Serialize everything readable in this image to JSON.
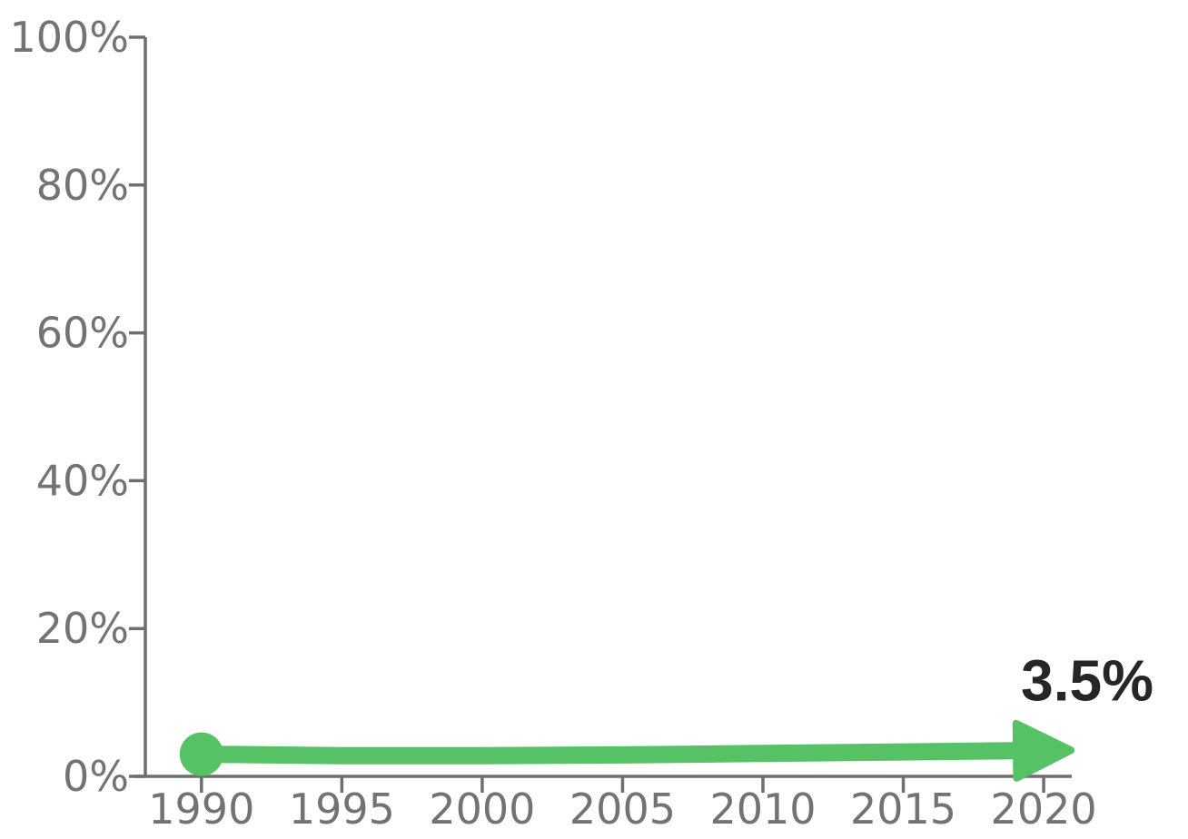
{
  "chart_data": {
    "type": "line",
    "title": "",
    "xlabel": "",
    "ylabel": "",
    "x": [
      1990,
      1995,
      2000,
      2005,
      2010,
      2015,
      2020
    ],
    "series": [
      {
        "values": [
          3.0,
          2.8,
          2.8,
          2.9,
          3.1,
          3.3,
          3.5
        ],
        "color": "#57c265"
      }
    ],
    "xlim": [
      1988,
      2021
    ],
    "ylim": [
      0,
      100
    ],
    "x_ticks": [
      1990,
      1995,
      2000,
      2005,
      2010,
      2015,
      2020
    ],
    "y_ticks": [
      0,
      20,
      40,
      60,
      80,
      100
    ],
    "x_tick_labels": [
      "1990",
      "1995",
      "2000",
      "2005",
      "2010",
      "2015",
      "2020"
    ],
    "y_tick_labels": [
      "0%",
      "20%",
      "40%",
      "60%",
      "80%",
      "100%"
    ],
    "end_label": "3.5%",
    "marker_start": "circle",
    "marker_end": "arrow",
    "grid": false,
    "legend": "none"
  }
}
